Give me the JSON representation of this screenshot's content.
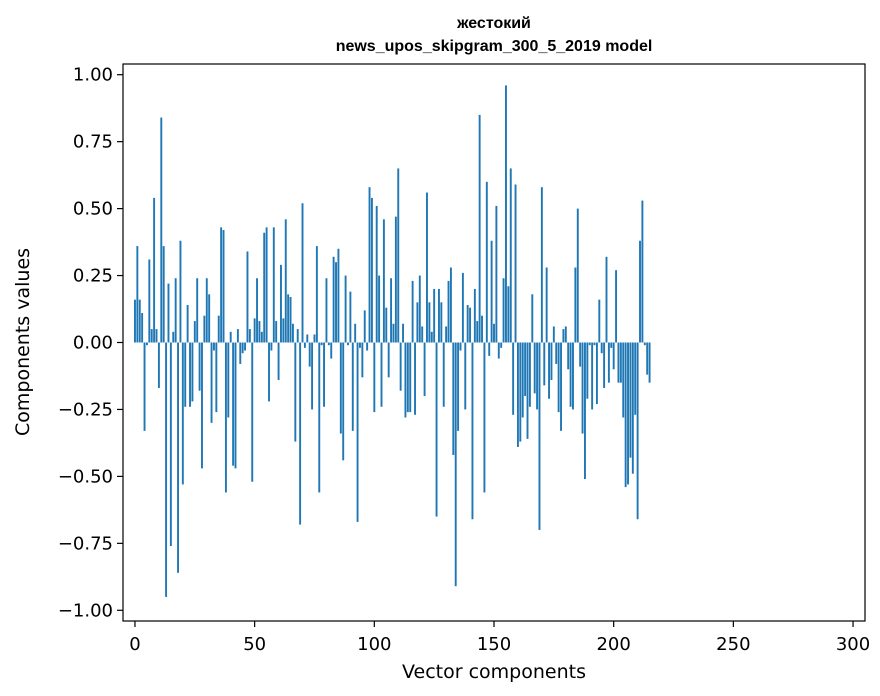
{
  "chart_data": {
    "type": "bar",
    "title": "жестокий",
    "subtitle": "news_upos_skipgram_300_5_2019 model",
    "xlabel": "Vector components",
    "ylabel": "Components values",
    "xlim": [
      -5,
      305
    ],
    "ylim": [
      -1.04,
      1.04
    ],
    "xticks": [
      0,
      50,
      100,
      150,
      200,
      250,
      300
    ],
    "xtick_labels": [
      "0",
      "50",
      "100",
      "150",
      "200",
      "250",
      "300"
    ],
    "yticks": [
      1.0,
      0.75,
      0.5,
      0.25,
      0.0,
      -0.25,
      -0.5,
      -0.75,
      -1.0
    ],
    "ytick_labels": [
      "1.00",
      "0.75",
      "0.50",
      "0.25",
      "0.00",
      "−0.25",
      "−0.50",
      "−0.75",
      "−1.00"
    ],
    "bar_color": "#1f77b4",
    "grid": false,
    "values": [
      0.16,
      0.36,
      0.16,
      0.11,
      -0.33,
      -0.01,
      0.31,
      0.05,
      0.54,
      0.05,
      -0.17,
      0.84,
      0.36,
      -0.95,
      0.22,
      -0.76,
      0.04,
      0.24,
      -0.86,
      0.38,
      -0.53,
      -0.24,
      0.14,
      -0.24,
      -0.22,
      0.08,
      0.24,
      -0.18,
      -0.47,
      0.1,
      0.24,
      0.18,
      -0.3,
      -0.03,
      -0.26,
      0.1,
      0.43,
      0.42,
      -0.56,
      -0.28,
      0.04,
      -0.46,
      -0.47,
      0.05,
      -0.08,
      -0.04,
      -0.03,
      0.34,
      0.05,
      -0.52,
      0.09,
      0.24,
      0.08,
      0.04,
      0.41,
      0.43,
      -0.22,
      -0.03,
      0.43,
      0.08,
      -0.14,
      0.29,
      0.09,
      0.46,
      0.18,
      0.17,
      0.07,
      -0.37,
      0.05,
      -0.68,
      0.52,
      -0.02,
      0.03,
      -0.09,
      -0.25,
      0.03,
      0.36,
      -0.56,
      -0.01,
      -0.24,
      0.24,
      -0.01,
      -0.06,
      0.32,
      0.3,
      0.35,
      -0.34,
      -0.44,
      0.25,
      -0.01,
      0.19,
      -0.33,
      0.07,
      -0.67,
      -0.02,
      -0.13,
      0.12,
      -0.03,
      0.58,
      0.54,
      -0.26,
      0.51,
      0.25,
      -0.24,
      0.46,
      0.13,
      -0.13,
      0.24,
      0.07,
      0.47,
      0.65,
      -0.18,
      0.07,
      -0.28,
      -0.26,
      -0.26,
      0.23,
      -0.27,
      0.15,
      0.25,
      0.06,
      -0.2,
      0.56,
      0.15,
      0.04,
      0.2,
      -0.65,
      0.2,
      0.15,
      -0.24,
      0.06,
      0.23,
      0.28,
      -0.42,
      -0.91,
      -0.33,
      -0.03,
      0.26,
      -0.25,
      0.14,
      0.13,
      -0.66,
      0.2,
      0.08,
      0.85,
      0.1,
      -0.56,
      0.6,
      -0.05,
      0.38,
      0.07,
      0.51,
      -0.06,
      -0.02,
      0.24,
      0.96,
      0.21,
      0.65,
      -0.27,
      0.59,
      -0.39,
      -0.37,
      -0.28,
      -0.2,
      -0.36,
      -0.24,
      0.18,
      -0.19,
      -0.25,
      -0.7,
      0.58,
      -0.16,
      0.28,
      -0.21,
      -0.14,
      0.06,
      -0.08,
      -0.26,
      -0.33,
      0.05,
      0.06,
      -0.1,
      -0.24,
      -0.25,
      0.28,
      0.5,
      -0.09,
      -0.34,
      -0.51,
      -0.21,
      -0.01,
      -0.25,
      -0.01,
      -0.23,
      0.16,
      -0.04,
      -0.17,
      0.32,
      -0.15,
      -0.02,
      -0.1,
      0.27,
      -0.15,
      -0.15,
      -0.28,
      -0.54,
      -0.53,
      -0.43,
      -0.49,
      -0.27,
      -0.66,
      0.38,
      0.53,
      -0.01,
      -0.12,
      -0.15
    ]
  }
}
